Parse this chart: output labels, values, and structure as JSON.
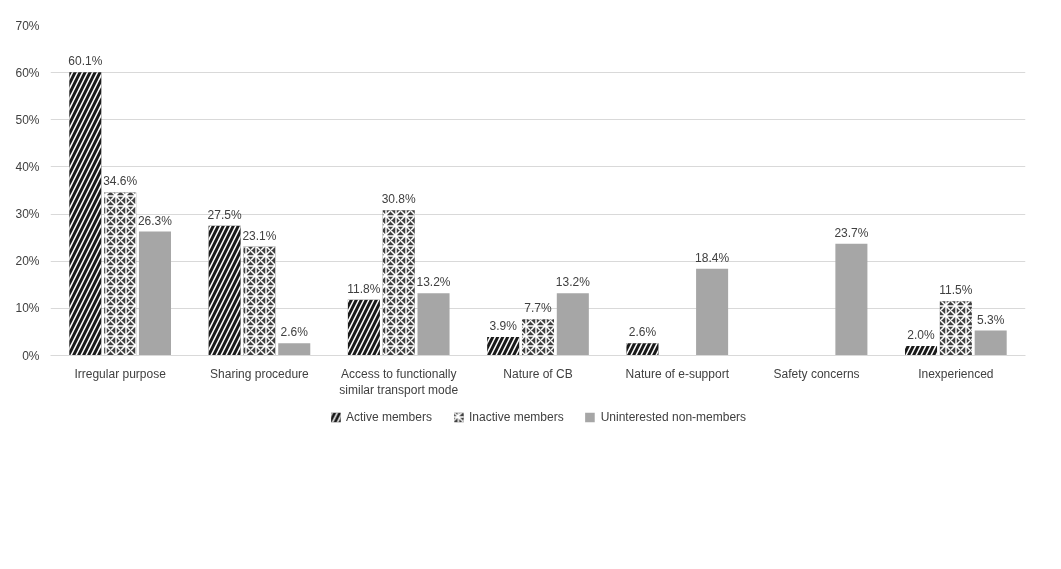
{
  "chart_data": {
    "type": "bar",
    "categories": [
      "Irregular purpose",
      "Sharing procedure",
      "Access to functionally similar transport mode",
      "Nature of CB",
      "Nature of e-support",
      "Safety concerns",
      "Inexperienced"
    ],
    "series": [
      {
        "name": "Active members",
        "color": "#1a1a1a",
        "values": [
          60.1,
          27.5,
          11.8,
          3.9,
          2.6,
          null,
          2.0
        ],
        "value_labels": [
          "60.1%",
          "27.5%",
          "11.8%",
          "3.9%",
          "2.6%",
          null,
          "2.0%"
        ]
      },
      {
        "name": "Inactive members",
        "color": "#404040",
        "values": [
          34.6,
          23.1,
          30.8,
          7.7,
          null,
          null,
          11.5
        ],
        "value_labels": [
          "34.6%",
          "23.1%",
          "30.8%",
          "7.7%",
          null,
          null,
          "11.5%"
        ]
      },
      {
        "name": "Uninterested non-members",
        "color": "#a6a6a6",
        "values": [
          26.3,
          2.6,
          13.2,
          13.2,
          18.4,
          23.7,
          5.3
        ],
        "value_labels": [
          "26.3%",
          "2.6%",
          "13.2%",
          "13.2%",
          "18.4%",
          "23.7%",
          "5.3%"
        ]
      }
    ],
    "ylim": [
      0,
      70
    ],
    "yticks": [
      {
        "value": 0,
        "label": "0%"
      },
      {
        "value": 10,
        "label": "10%"
      },
      {
        "value": 20,
        "label": "20%"
      },
      {
        "value": 30,
        "label": "30%"
      },
      {
        "value": 40,
        "label": "40%"
      },
      {
        "value": 50,
        "label": "50%"
      },
      {
        "value": 60,
        "label": "60%"
      },
      {
        "value": 70,
        "label": "70%"
      }
    ],
    "grid": "y",
    "legend": "bottom"
  }
}
